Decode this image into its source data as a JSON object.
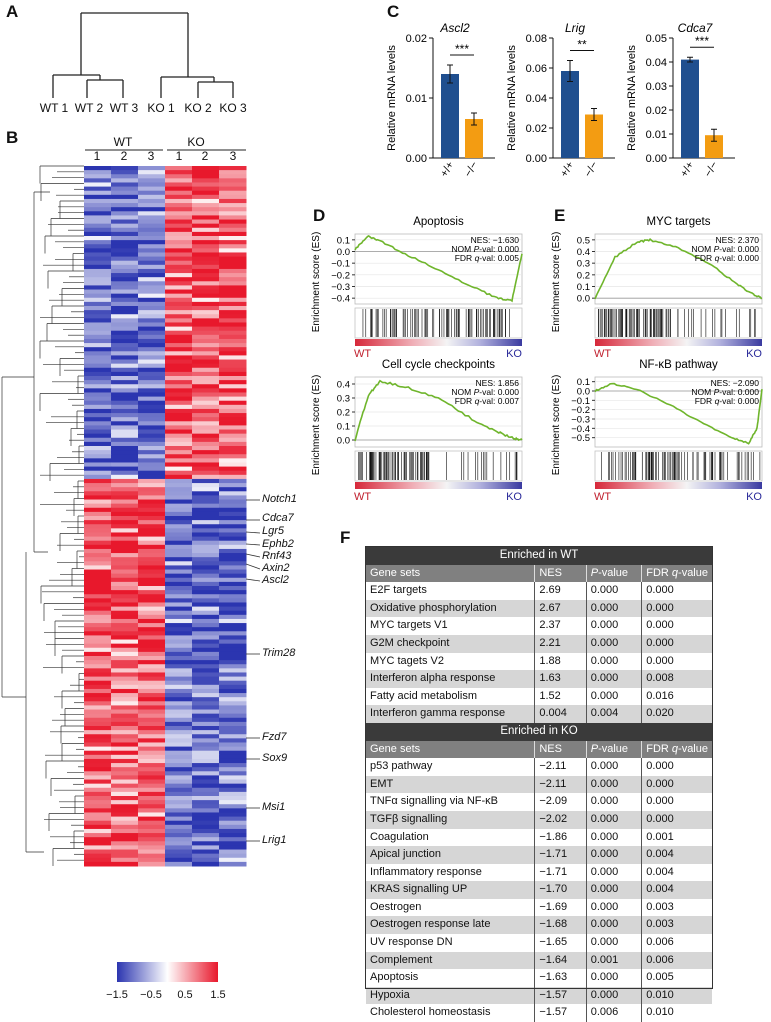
{
  "panels": {
    "A": "A",
    "B": "B",
    "C": "C",
    "D": "D",
    "E": "E",
    "F": "F"
  },
  "dendrogram": {
    "leaves": [
      "WT 1",
      "WT 2",
      "WT 3",
      "KO 1",
      "KO 2",
      "KO 3"
    ]
  },
  "heatmap": {
    "group_wt": "WT",
    "group_ko": "KO",
    "columns": [
      "1",
      "2",
      "3",
      "1",
      "2",
      "3"
    ],
    "genes": [
      "Notch1",
      "Cdca7",
      "Lgr5",
      "Ephb2",
      "Rnf43",
      "Axin2",
      "Ascl2",
      "Trim28",
      "Fzd7",
      "Sox9",
      "Msi1",
      "Lrig1"
    ],
    "colorbar": {
      "ticks": [
        "−1.5",
        "−0.5",
        "0.5",
        "1.5"
      ],
      "colors": {
        "low": "#2b35b0",
        "mid": "#ffffff",
        "high": "#e8182c"
      }
    }
  },
  "chart_data": [
    {
      "type": "bar",
      "title": "Ascl2",
      "ylabel": "Relative mRNA levels",
      "categories": [
        "+/+",
        "−/−"
      ],
      "values": [
        0.014,
        0.0065
      ],
      "errors": [
        0.0015,
        0.001
      ],
      "ylim": [
        0,
        0.02
      ],
      "yticks": [
        "0.00",
        "0.01",
        "0.02"
      ],
      "significance": "***",
      "colors": [
        "#1f4f8f",
        "#f39c12"
      ]
    },
    {
      "type": "bar",
      "title": "Lrig",
      "ylabel": "Relative mRNA levels",
      "categories": [
        "+/+",
        "−/−"
      ],
      "values": [
        0.058,
        0.029
      ],
      "errors": [
        0.007,
        0.004
      ],
      "ylim": [
        0,
        0.08
      ],
      "yticks": [
        "0.00",
        "0.02",
        "0.04",
        "0.06",
        "0.08"
      ],
      "significance": "**",
      "colors": [
        "#1f4f8f",
        "#f39c12"
      ]
    },
    {
      "type": "bar",
      "title": "Cdca7",
      "ylabel": "Relative mRNA levels",
      "categories": [
        "+/+",
        "−/−"
      ],
      "values": [
        0.041,
        0.0095
      ],
      "errors": [
        0.001,
        0.0025
      ],
      "ylim": [
        0,
        0.05
      ],
      "yticks": [
        "0.00",
        "0.01",
        "0.02",
        "0.03",
        "0.04",
        "0.05"
      ],
      "significance": "***",
      "colors": [
        "#1f4f8f",
        "#f39c12"
      ]
    },
    {
      "type": "line",
      "title": "Apoptosis",
      "ylabel": "Enrichment score (ES)",
      "ylim": [
        -0.45,
        0.15
      ],
      "yticks": [
        "0.1",
        "0.0",
        "−0.1",
        "−0.2",
        "−0.3",
        "−0.4"
      ],
      "stats": {
        "nes": "NES: −1.630",
        "nom": "NOM ",
        "nom_p": "P",
        "nom_rest": "-val: 0.000",
        "fdr": "FDR ",
        "fdr_q": "q",
        "fdr_rest": "-val: 0.005"
      },
      "x_left_label": "WT",
      "x_right_label": "KO"
    },
    {
      "type": "line",
      "title": "MYC targets",
      "ylabel": "Enrichment score (ES)",
      "ylim": [
        -0.05,
        0.55
      ],
      "yticks": [
        "0.5",
        "0.4",
        "0.3",
        "0.2",
        "0.1",
        "0.0"
      ],
      "stats": {
        "nes": "NES: 2.370",
        "nom": "NOM ",
        "nom_p": "P",
        "nom_rest": "-val: 0.000",
        "fdr": "FDR ",
        "fdr_q": "q",
        "fdr_rest": "-val: 0.000"
      },
      "x_left_label": "WT",
      "x_right_label": "KO"
    },
    {
      "type": "line",
      "title": "Cell cycle checkpoints",
      "ylabel": "Enrichment score (ES)",
      "ylim": [
        -0.05,
        0.45
      ],
      "yticks": [
        "0.4",
        "0.3",
        "0.2",
        "0.1",
        "0.0"
      ],
      "stats": {
        "nes": "NES: 1.856",
        "nom": "NOM ",
        "nom_p": "P",
        "nom_rest": "-val: 0.000",
        "fdr": "FDR ",
        "fdr_q": "q",
        "fdr_rest": "-val: 0.007"
      },
      "x_left_label": "WT",
      "x_right_label": "KO"
    },
    {
      "type": "line",
      "title": "NF-κB pathway",
      "ylabel": "Enrichment score (ES)",
      "ylim": [
        -0.6,
        0.15
      ],
      "yticks": [
        "0.1",
        "0.0",
        "−0.1",
        "−0.2",
        "−0.3",
        "−0.4",
        "−0.5"
      ],
      "stats": {
        "nes": "NES: −2.090",
        "nom": "NOM ",
        "nom_p": "P",
        "nom_rest": "-val: 0.000",
        "fdr": "FDR ",
        "fdr_q": "q",
        "fdr_rest": "-val: 0.000"
      },
      "x_left_label": "WT",
      "x_right_label": "KO"
    }
  ],
  "table": {
    "wt_title": "Enriched in WT",
    "ko_title": "Enriched in KO",
    "headers": {
      "c1": "Gene sets",
      "c2": "NES",
      "c3_i": "P",
      "c3_r": "-value",
      "c4_r": "FDR ",
      "c4_i": "q",
      "c4_r2": "-value"
    },
    "wt_rows": [
      [
        "E2F targets",
        "2.69",
        "0.000",
        "0.000"
      ],
      [
        "Oxidative phosphorylation",
        "2.67",
        "0.000",
        "0.000"
      ],
      [
        "MYC targets V1",
        "2.37",
        "0.000",
        "0.000"
      ],
      [
        "G2M checkpoint",
        "2.21",
        "0.000",
        "0.000"
      ],
      [
        "MYC tagets V2",
        "1.88",
        "0.000",
        "0.000"
      ],
      [
        "Interferon alpha response",
        "1.63",
        "0.000",
        "0.008"
      ],
      [
        "Fatty acid metabolism",
        "1.52",
        "0.000",
        "0.016"
      ],
      [
        "Interferon gamma response",
        "0.004",
        "0.004",
        "0.020"
      ]
    ],
    "ko_rows": [
      [
        "p53 pathway",
        "−2.11",
        "0.000",
        "0.000"
      ],
      [
        "EMT",
        "−2.11",
        "0.000",
        "0.000"
      ],
      [
        "TNFα signalling via NF-κB",
        "−2.09",
        "0.000",
        "0.000"
      ],
      [
        "TGFβ signalling",
        "−2.02",
        "0.000",
        "0.000"
      ],
      [
        "Coagulation",
        "−1.86",
        "0.000",
        "0.001"
      ],
      [
        "Apical junction",
        "−1.71",
        "0.000",
        "0.004"
      ],
      [
        "Inflammatory response",
        "−1.71",
        "0.000",
        "0.004"
      ],
      [
        "KRAS signalling UP",
        "−1.70",
        "0.000",
        "0.004"
      ],
      [
        "Oestrogen",
        "−1.69",
        "0.000",
        "0.003"
      ],
      [
        "Oestrogen response late",
        "−1.68",
        "0.000",
        "0.003"
      ],
      [
        "UV response DN",
        "−1.65",
        "0.000",
        "0.006"
      ],
      [
        "Complement",
        "−1.64",
        "0.001",
        "0.006"
      ],
      [
        "Apoptosis",
        "−1.63",
        "0.000",
        "0.005"
      ],
      [
        "Hypoxia",
        "−1.57",
        "0.000",
        "0.010"
      ],
      [
        "Cholesterol homeostasis",
        "−1.57",
        "0.006",
        "0.010"
      ]
    ]
  }
}
